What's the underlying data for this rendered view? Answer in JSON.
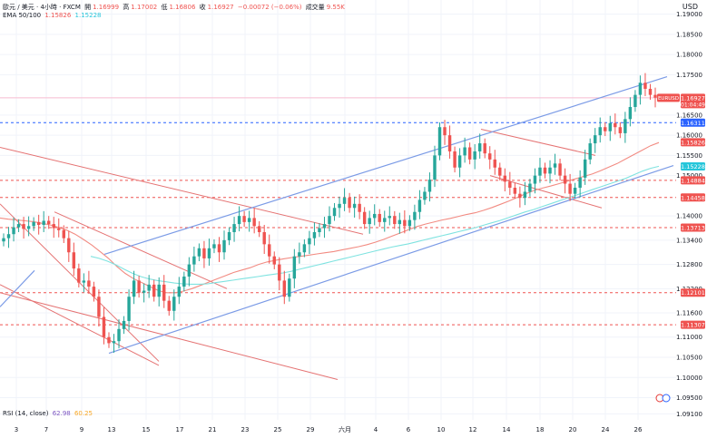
{
  "header": {
    "title": "歐元 / 美元 · 4小時 · FXCM",
    "open_label": "開",
    "open": "1.16999",
    "high_label": "高",
    "high": "1.17002",
    "low_label": "低",
    "low": "1.16806",
    "close_label": "收",
    "close": "1.16927",
    "change": "−0.00072 (−0.06%)",
    "volume_label": "成交量",
    "volume": "9.55K",
    "currency": "USD"
  },
  "ema": {
    "label": "EMA 50/100",
    "v1": "1.15826",
    "v2": "1.15228"
  },
  "rsi": {
    "label": "RSI (14, close)",
    "v1": "62.98",
    "v2": "60.25"
  },
  "price_badge": {
    "symbol": "EURUSD",
    "price": "1.16927",
    "countdown": "01:04:49"
  },
  "colors": {
    "up": "#26a69a",
    "down": "#ef5350",
    "ema50": "#f28b82",
    "ema100": "#7fe3e0",
    "channel": "#7b9be6",
    "trend": "#e57373",
    "hline": "#e53935",
    "blue_line": "#2962ff"
  },
  "chart_data": {
    "type": "candlestick",
    "x_ticks": [
      "3",
      "7",
      "9",
      "13",
      "15",
      "17",
      "21",
      "23",
      "25",
      "29",
      "六月",
      "4",
      "6",
      "10",
      "12",
      "14",
      "18",
      "20",
      "24",
      "26"
    ],
    "y_ticks": [
      "1.19000",
      "1.18500",
      "1.18000",
      "1.17500",
      "1.16500",
      "1.16000",
      "1.15500",
      "1.15000",
      "1.14000",
      "1.13400",
      "1.12800",
      "1.12200",
      "1.11600",
      "1.11000",
      "1.10500",
      "1.10000",
      "1.09500",
      "1.09100"
    ],
    "ylim": [
      1.0895,
      1.1935
    ],
    "price_labels": [
      {
        "value": 1.16927,
        "text": "1.16927",
        "color": "#ef5350"
      },
      {
        "value": 1.16311,
        "text": "1.16311",
        "color": "#2962ff"
      },
      {
        "value": 1.15826,
        "text": "1.15826",
        "color": "#ef5350"
      },
      {
        "value": 1.15228,
        "text": "1.15228",
        "color": "#26c6da"
      },
      {
        "value": 1.14884,
        "text": "1.14884",
        "color": "#ef5350"
      },
      {
        "value": 1.14458,
        "text": "1.14458",
        "color": "#ef5350"
      },
      {
        "value": 1.13713,
        "text": "1.13713",
        "color": "#ef5350"
      },
      {
        "value": 1.12101,
        "text": "1.12101",
        "color": "#ef5350"
      },
      {
        "value": 1.11307,
        "text": "1.11307",
        "color": "#ef5350"
      }
    ],
    "hlines": [
      {
        "value": 1.16927,
        "style": "solid",
        "color": "#f8bbd0"
      },
      {
        "value": 1.16311,
        "style": "dashed",
        "color": "#2962ff"
      },
      {
        "value": 1.14884,
        "style": "dashed",
        "color": "#ef5350"
      },
      {
        "value": 1.14458,
        "style": "dashed",
        "color": "#ef5350"
      },
      {
        "value": 1.13713,
        "style": "dashed",
        "color": "#ef5350"
      },
      {
        "value": 1.12101,
        "style": "dashed",
        "color": "#ef5350"
      },
      {
        "value": 1.11307,
        "style": "dashed",
        "color": "#ef5350"
      }
    ],
    "closes": [
      1.1345,
      1.1355,
      1.1372,
      1.138,
      1.1368,
      1.1375,
      1.1385,
      1.1378,
      1.1388,
      1.138,
      1.137,
      1.1365,
      1.1345,
      1.131,
      1.127,
      1.1235,
      1.124,
      1.1225,
      1.12,
      1.115,
      1.11,
      1.1085,
      1.109,
      1.112,
      1.114,
      1.12,
      1.124,
      1.121,
      1.1215,
      1.123,
      1.12,
      1.123,
      1.119,
      1.1165,
      1.12,
      1.1225,
      1.125,
      1.128,
      1.13,
      1.132,
      1.1295,
      1.132,
      1.133,
      1.131,
      1.134,
      1.136,
      1.138,
      1.14,
      1.1385,
      1.1395,
      1.1375,
      1.136,
      1.133,
      1.13,
      1.128,
      1.124,
      1.12,
      1.1245,
      1.13,
      1.131,
      1.133,
      1.1345,
      1.136,
      1.137,
      1.138,
      1.14,
      1.142,
      1.143,
      1.1445,
      1.142,
      1.143,
      1.141,
      1.138,
      1.1395,
      1.1405,
      1.1385,
      1.1395,
      1.14,
      1.138,
      1.139,
      1.1375,
      1.139,
      1.141,
      1.144,
      1.146,
      1.149,
      1.155,
      1.162,
      1.16,
      1.156,
      1.152,
      1.155,
      1.157,
      1.154,
      1.156,
      1.158,
      1.1555,
      1.154,
      1.152,
      1.15,
      1.1485,
      1.147,
      1.1455,
      1.1445,
      1.146,
      1.148,
      1.15,
      1.152,
      1.1505,
      1.152,
      1.153,
      1.15,
      1.148,
      1.1455,
      1.147,
      1.1495,
      1.154,
      1.158,
      1.16,
      1.162,
      1.161,
      1.163,
      1.162,
      1.1605,
      1.164,
      1.167,
      1.17,
      1.173,
      1.1715,
      1.17,
      1.1693
    ],
    "ema50": [
      1.1395,
      1.1392,
      1.139,
      1.1388,
      1.1386,
      1.1382,
      1.1378,
      1.1372,
      1.1365,
      1.1355,
      1.1342,
      1.1328,
      1.1312,
      1.1295,
      1.1275,
      1.1258,
      1.1245,
      1.1235,
      1.1225,
      1.1215,
      1.121,
      1.121,
      1.1214,
      1.122,
      1.1228,
      1.1236,
      1.1244,
      1.1252,
      1.126,
      1.1266,
      1.1272,
      1.128,
      1.1286,
      1.129,
      1.1294,
      1.1297,
      1.13,
      1.1303,
      1.1306,
      1.1309,
      1.1312,
      1.1316,
      1.132,
      1.1324,
      1.1329,
      1.1335,
      1.1342,
      1.135,
      1.1358,
      1.1366,
      1.1374,
      1.138,
      1.1385,
      1.139,
      1.1394,
      1.1399,
      1.1404,
      1.1408,
      1.1414,
      1.1421,
      1.1429,
      1.1437,
      1.1446,
      1.1455,
      1.1463,
      1.1469,
      1.1474,
      1.148,
      1.1486,
      1.1492,
      1.1498,
      1.1504,
      1.1512,
      1.1521,
      1.153,
      1.1541,
      1.1552,
      1.1563,
      1.1574,
      1.1582
    ],
    "ema100": [
      1.13,
      1.1295,
      1.1288,
      1.1279,
      1.1268,
      1.1258,
      1.125,
      1.1244,
      1.124,
      1.1237,
      1.1234,
      1.1232,
      1.1231,
      1.1231,
      1.1232,
      1.1235,
      1.1238,
      1.1241,
      1.1244,
      1.1247,
      1.125,
      1.1253,
      1.1256,
      1.1259,
      1.1263,
      1.1268,
      1.1273,
      1.1278,
      1.1283,
      1.1288,
      1.1293,
      1.1298,
      1.1303,
      1.1308,
      1.1313,
      1.1318,
      1.1323,
      1.1327,
      1.1331,
      1.1336,
      1.1341,
      1.1346,
      1.1351,
      1.1356,
      1.1361,
      1.1366,
      1.1371,
      1.1377,
      1.1383,
      1.1389,
      1.1396,
      1.1403,
      1.141,
      1.1416,
      1.1423,
      1.143,
      1.1437,
      1.1444,
      1.1451,
      1.1458,
      1.1465,
      1.1472,
      1.1479,
      1.1486,
      1.1493,
      1.1502,
      1.1511,
      1.1518,
      1.1523
    ],
    "channel": {
      "upper": [
        [
          115,
          1.1305
        ],
        [
          735,
          1.1745
        ]
      ],
      "lower": [
        [
          120,
          1.106
        ],
        [
          742,
          1.1525
        ]
      ],
      "left_short": [
        [
          0,
          1.1175
        ],
        [
          38,
          1.1265
        ]
      ]
    },
    "trend_lines": [
      [
        [
          0,
          1.157
        ],
        [
          400,
          1.1355
        ]
      ],
      [
        [
          0,
          1.143
        ],
        [
          175,
          1.104
        ]
      ],
      [
        [
          0,
          1.121
        ],
        [
          372,
          1.0995
        ]
      ],
      [
        [
          0,
          1.123
        ],
        [
          175,
          1.103
        ]
      ],
      [
        [
          60,
          1.141
        ],
        [
          250,
          1.122
        ]
      ],
      [
        [
          530,
          1.1615
        ],
        [
          656,
          1.155
        ]
      ],
      [
        [
          540,
          1.15
        ],
        [
          663,
          1.142
        ]
      ]
    ]
  }
}
